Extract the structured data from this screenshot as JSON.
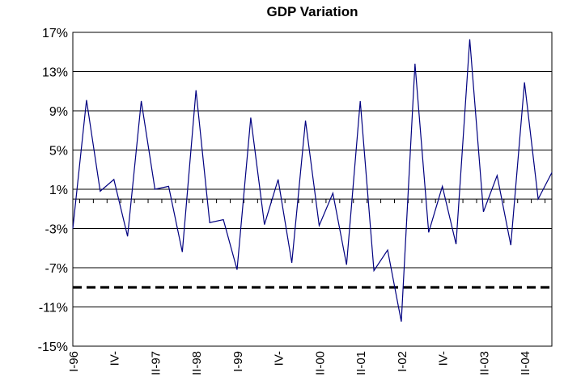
{
  "chart_data": {
    "type": "line",
    "title": "GDP Variation",
    "categories": [
      "I-96",
      null,
      null,
      "IV-",
      null,
      null,
      "II-97",
      null,
      null,
      "II-98",
      null,
      null,
      "I-99",
      null,
      null,
      "IV-",
      null,
      null,
      "II-00",
      null,
      null,
      "II-01",
      null,
      null,
      "I-02",
      null,
      null,
      "IV-",
      null,
      null,
      "II-03",
      null,
      null,
      "II-04",
      null,
      null
    ],
    "series": [
      {
        "name": "GDP Variation",
        "color": "#000080",
        "values": [
          -3.0,
          10.1,
          0.8,
          2.0,
          -3.8,
          10.0,
          1.0,
          1.3,
          -5.4,
          11.1,
          -2.4,
          -2.1,
          -7.2,
          8.3,
          -2.6,
          2.0,
          -6.5,
          8.0,
          -2.7,
          0.6,
          -6.7,
          10.0,
          -7.3,
          -5.2,
          -12.5,
          13.8,
          -3.4,
          1.3,
          -4.6,
          16.3,
          -1.3,
          2.4,
          -4.7,
          11.9,
          0.0,
          2.7
        ]
      }
    ],
    "reference_line": -9,
    "ylim": [
      -15,
      17
    ],
    "yticks": [
      {
        "value": -15,
        "label": "-15%"
      },
      {
        "value": -11,
        "label": "-11%"
      },
      {
        "value": -7,
        "label": "-7%"
      },
      {
        "value": -3,
        "label": "-3%"
      },
      {
        "value": 1,
        "label": "1%"
      },
      {
        "value": 5,
        "label": "5%"
      },
      {
        "value": 9,
        "label": "9%"
      },
      {
        "value": 13,
        "label": "13%"
      },
      {
        "value": 17,
        "label": "17%"
      }
    ],
    "grid": true
  }
}
